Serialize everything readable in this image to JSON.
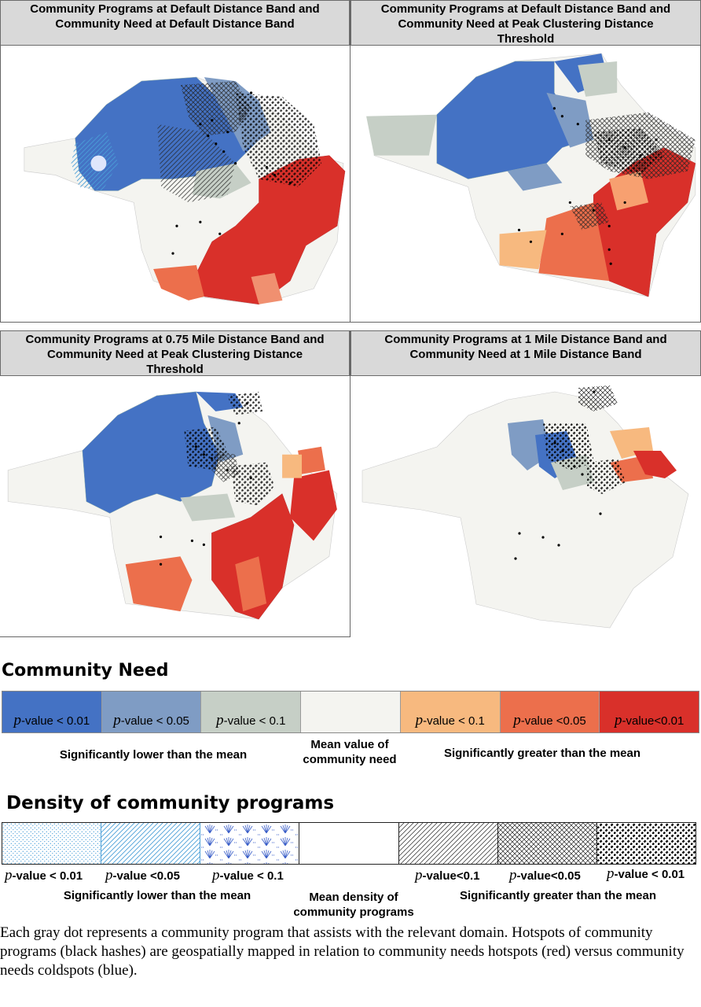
{
  "panels": [
    {
      "title_line1": "Community Programs at Default Distance Band and",
      "title_line2": "Community Need at Default Distance Band",
      "title_line3": ""
    },
    {
      "title_line1": "Community Programs at Default Distance Band and",
      "title_line2": "Community Need at Peak Clustering Distance",
      "title_line3": "Threshold"
    },
    {
      "title_line1": "Community Programs at 0.75 Mile Distance Band and",
      "title_line2": "Community Need at Peak Clustering Distance",
      "title_line3": "Threshold"
    },
    {
      "title_line1": "Community Programs at 1 Mile Distance Band and",
      "title_line2": "Community Need at 1 Mile Distance Band",
      "title_line3": ""
    }
  ],
  "need_legend": {
    "title": "Community Need",
    "swatches": [
      {
        "color": "#4472c4",
        "p": "p",
        "label": "-value < 0.01"
      },
      {
        "color": "#7f9cc4",
        "p": "p",
        "label": "-value < 0.05"
      },
      {
        "color": "#c6cfc6",
        "p": "p",
        "label": "-value < 0.1"
      },
      {
        "color": "#f4f4f0",
        "p": "",
        "label": ""
      },
      {
        "color": "#f7b97f",
        "p": "p",
        "label": "-value < 0.1"
      },
      {
        "color": "#ec6f4c",
        "p": "p",
        "label": "-value <0.05"
      },
      {
        "color": "#d9302a",
        "p": "p",
        "label": "-value<0.01"
      }
    ],
    "note_low": "Significantly lower than the mean",
    "note_mid_1": "Mean value of",
    "note_mid_2": "community need",
    "note_high": "Significantly greater than the mean"
  },
  "density_legend": {
    "title": "Density of community programs",
    "p_letter": "p",
    "labels": [
      "-value < 0.01",
      "-value <0.05",
      "-value < 0.1",
      "",
      "-value<0.1",
      "-value<0.05",
      "-value < 0.01"
    ],
    "patterns": [
      "dots-blue",
      "diag-blue",
      "fan-blue",
      "none",
      "diag-black",
      "cross-black",
      "dash-black"
    ],
    "note_low": "Significantly lower than the mean",
    "note_mid_1": "Mean density of",
    "note_mid_2": "community programs",
    "note_high": "Significantly greater than the mean"
  },
  "caption": "Each gray dot represents a community program that assists with the relevant domain. Hotspots of community programs (black hashes) are geospatially mapped in relation to community needs hotspots (red) versus community needs coldspots (blue).",
  "colors": {
    "cold_01": "#4472c4",
    "cold_05": "#7f9cc4",
    "cold_1": "#c6cfc6",
    "mean": "#f4f4f0",
    "hot_1": "#f7b97f",
    "hot_05": "#ec6f4c",
    "hot_01": "#d9302a"
  }
}
